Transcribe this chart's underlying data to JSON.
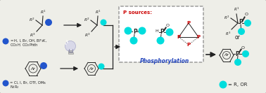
{
  "bg_color": "#eeeee8",
  "border_color": "#aaaaaa",
  "blue_dot": "#2255cc",
  "cyan_dot": "#00dddd",
  "red_text": "#cc0000",
  "blk": "#222222",
  "blue_arrow": "#2244bb",
  "p_sources_text": "P sources:",
  "phosphorylation_text": "Phosphorylation",
  "dot1_line1": "= H, I, Br, OH, BF",
  "dot1_bf3k": "3",
  "dot1_line1b": "K,",
  "dot1_line2": "CO",
  "dot1_line2b": "2",
  "dot1_line2c": "H, CO",
  "dot1_line2d": "2",
  "dot1_line2e": "Phth",
  "dot2_line1": "= Cl, I, Br, OTf, OMs",
  "dot2_line2": "N",
  "dot2_line2b": "2",
  "dot2_line2c": "R",
  "dot2_line2d": "2",
  "cyan_label": "= R, OR",
  "or_text": "or"
}
